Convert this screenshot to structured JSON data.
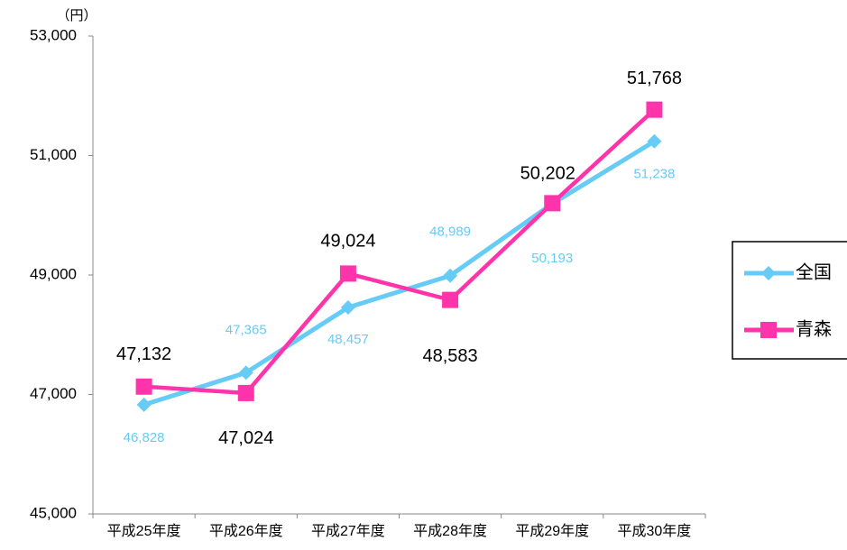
{
  "chart_data": {
    "type": "line",
    "y_unit_label": "（円）",
    "categories": [
      "平成25年度",
      "平成26年度",
      "平成27年度",
      "平成28年度",
      "平成29年度",
      "平成30年度"
    ],
    "series": [
      {
        "name": "全国",
        "color": "#66ccf5",
        "marker": "diamond",
        "values": [
          46828,
          47365,
          48457,
          48989,
          50193,
          51238
        ],
        "value_labels": [
          "46,828",
          "47,365",
          "48,457",
          "48,989",
          "50,193",
          "51,238"
        ]
      },
      {
        "name": "青森",
        "color": "#ff33aa",
        "marker": "square",
        "values": [
          47132,
          47024,
          49024,
          48583,
          50202,
          51768
        ],
        "value_labels": [
          "47,132",
          "47,024",
          "49,024",
          "48,583",
          "50,202",
          "51,768"
        ]
      }
    ],
    "ylim": [
      45000,
      53000
    ],
    "yticks": [
      {
        "value": 45000,
        "label": "45,000"
      },
      {
        "value": 47000,
        "label": "47,000"
      },
      {
        "value": 49000,
        "label": "49,000"
      },
      {
        "value": 51000,
        "label": "51,000"
      },
      {
        "value": 53000,
        "label": "53,000"
      }
    ],
    "grid": false,
    "legend": "right"
  }
}
